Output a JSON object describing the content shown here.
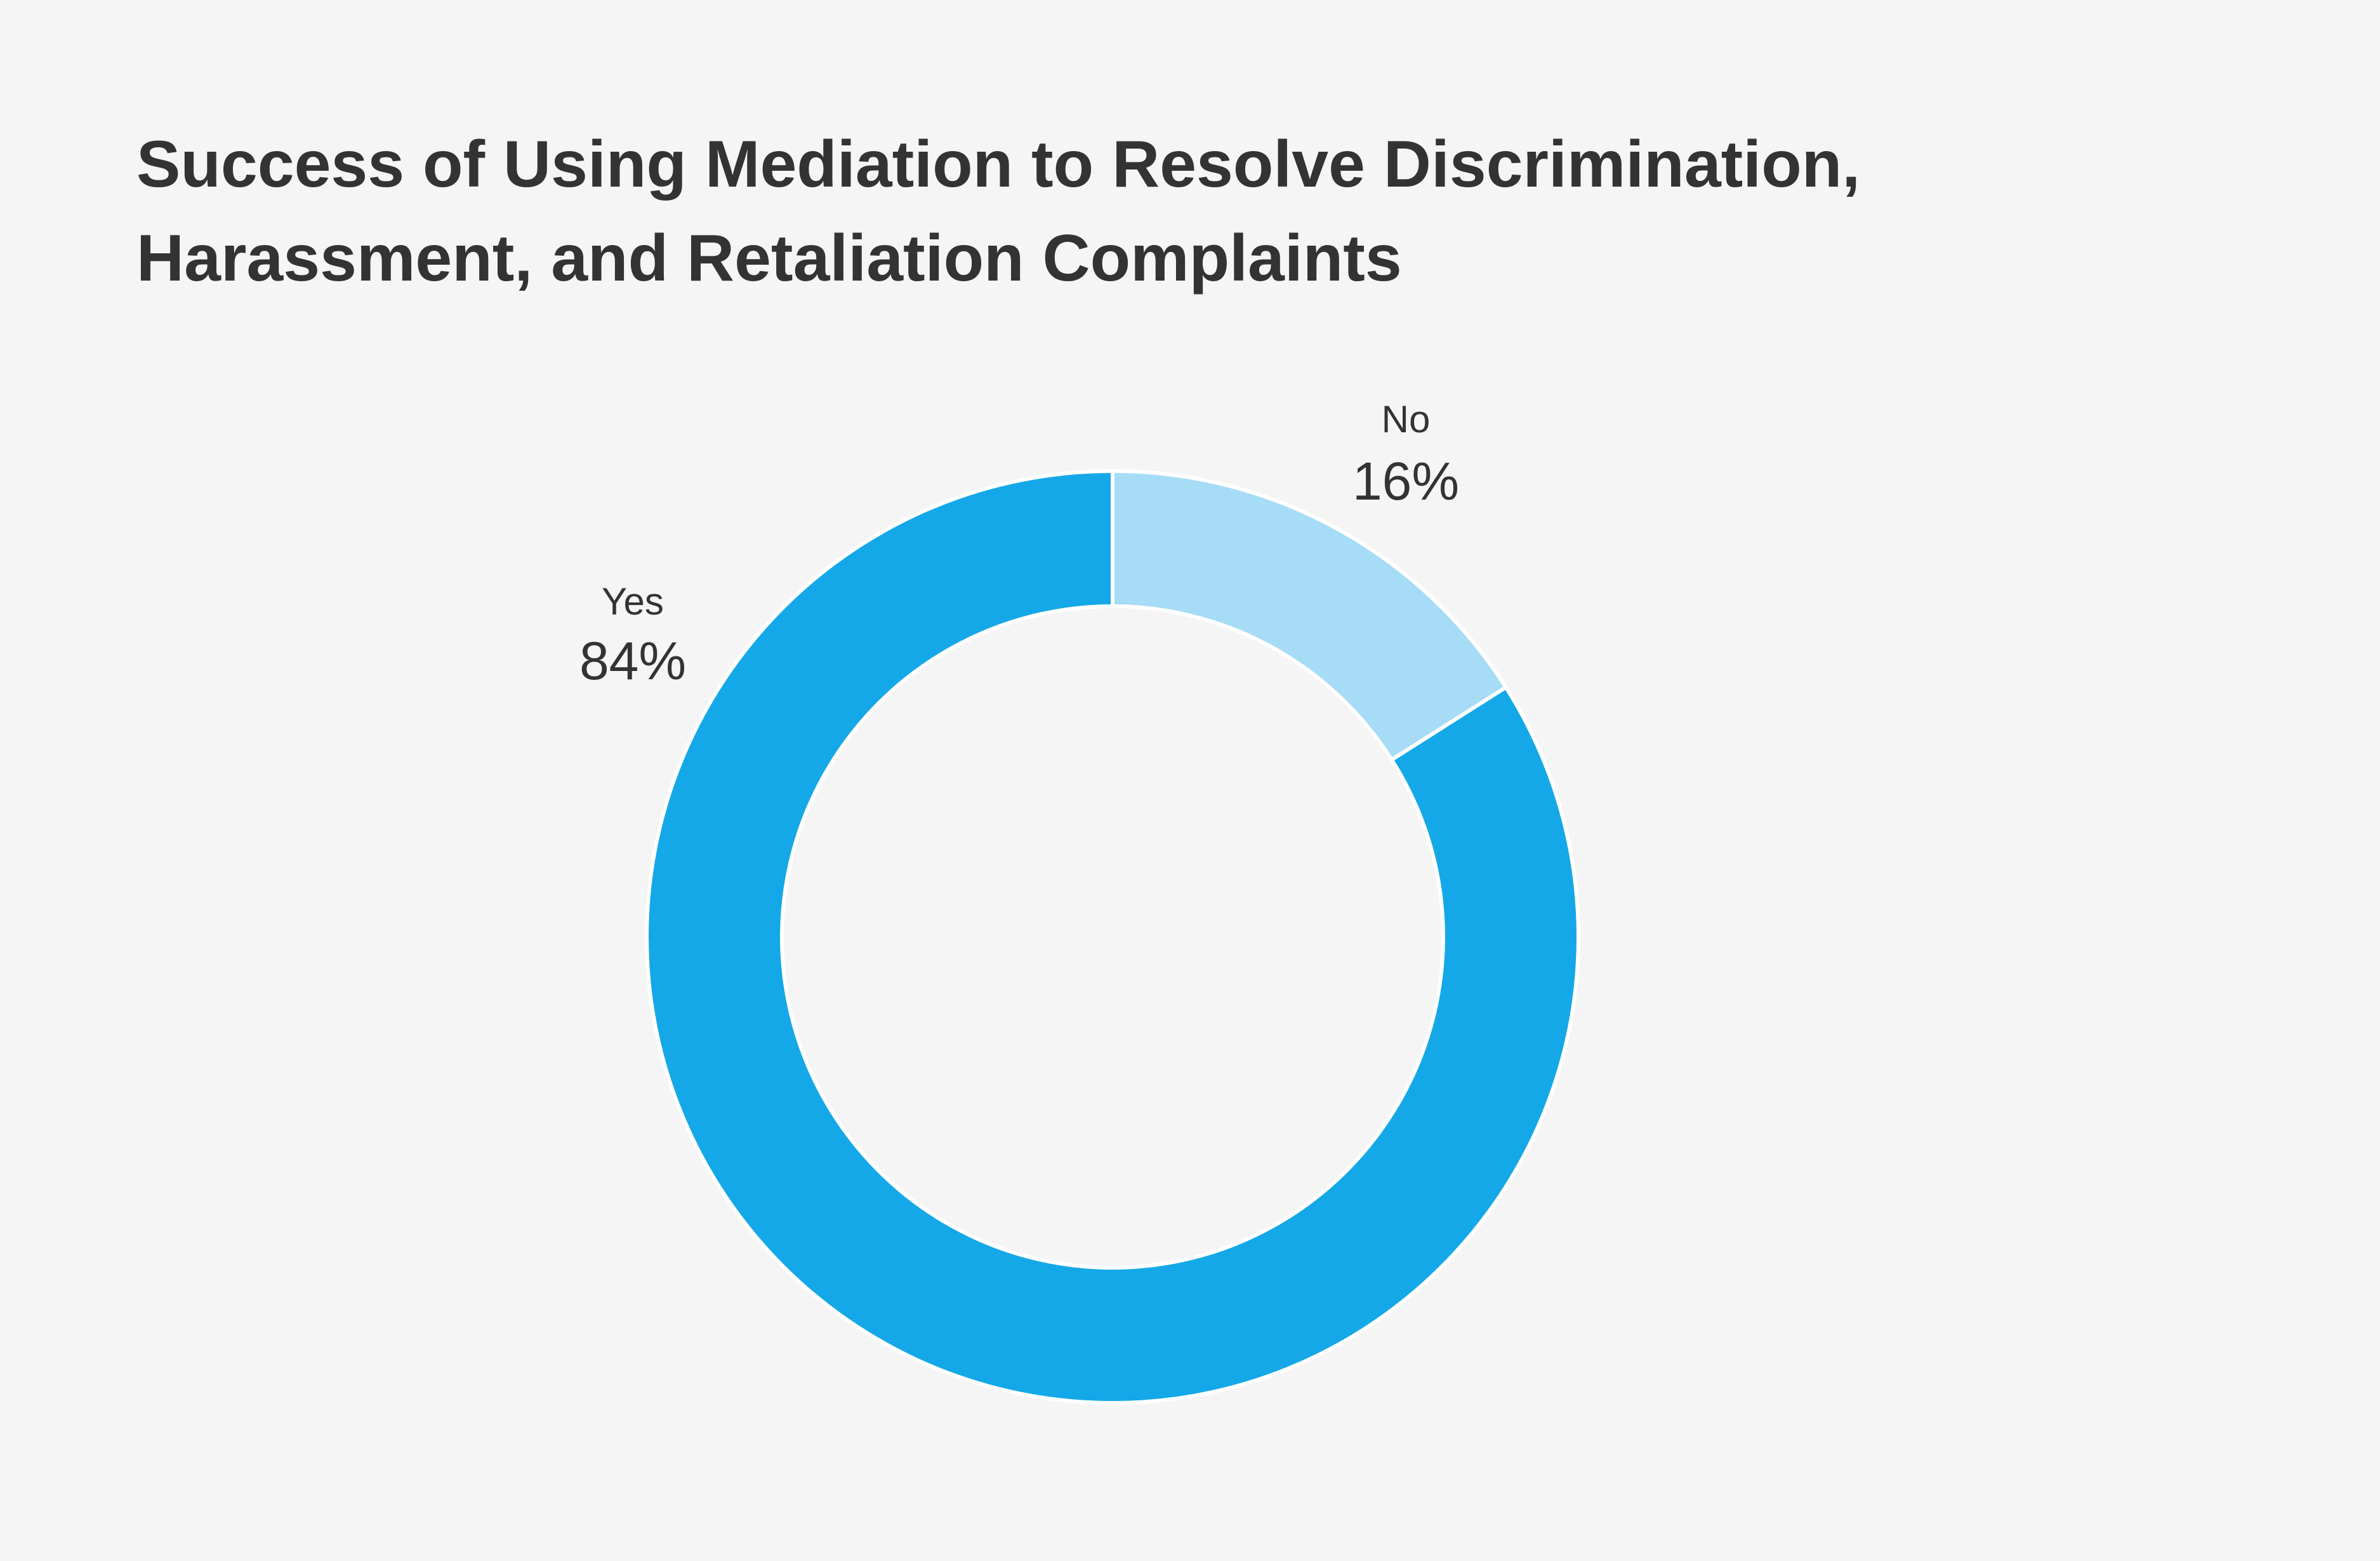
{
  "chart_data": {
    "type": "pie",
    "donut": true,
    "title": "Success of Using Mediation to Resolve Discrimination, Harassment, and Retaliation Complaints",
    "categories": [
      "No",
      "Yes"
    ],
    "values": [
      16,
      84
    ],
    "value_labels": [
      "16%",
      "84%"
    ],
    "colors": [
      "#a6dcf6",
      "#14a8e8"
    ]
  }
}
